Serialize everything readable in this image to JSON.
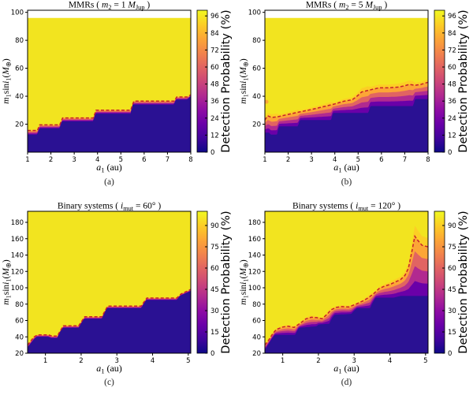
{
  "colors": {
    "background": "#ffffff",
    "yellow": "#f2e41f",
    "dark": "#2a1193",
    "dashed_line": "#c5202a",
    "band": [
      "#6a00a8",
      "#b12a90",
      "#e16462",
      "#fca636",
      "#fcce25"
    ],
    "plasma": [
      "#0d0887",
      "#41049d",
      "#6a00a8",
      "#8f0da4",
      "#b12a90",
      "#cc4778",
      "#e16462",
      "#f2844b",
      "#fca636",
      "#fcce25",
      "#f0f921"
    ],
    "axis": "#000000"
  },
  "chart_data": [
    {
      "id": "a",
      "type": "heatmap",
      "caption": "(a)",
      "title_segments": [
        {
          "t": "MMRs ( "
        },
        {
          "t": "m",
          "s": "i"
        },
        {
          "t": "2",
          "s": "sub"
        },
        {
          "t": " = 1 "
        },
        {
          "t": "M",
          "s": "i"
        },
        {
          "t": "Jup",
          "s": "sub"
        },
        {
          "t": " )"
        }
      ],
      "xlabel_segments": [
        {
          "t": "a",
          "s": "i"
        },
        {
          "t": "1",
          "s": "sub"
        },
        {
          "t": " (au)"
        }
      ],
      "ylabel_segments": [
        {
          "t": "m",
          "s": "i"
        },
        {
          "t": "1",
          "s": "sub"
        },
        {
          "t": "sin"
        },
        {
          "t": "i",
          "s": "i"
        },
        {
          "t": "1",
          "s": "sub"
        },
        {
          "t": "("
        },
        {
          "t": "M",
          "s": "i"
        },
        {
          "t": "⊕",
          "s": "sub"
        },
        {
          "t": ")"
        }
      ],
      "x_range": [
        1,
        8
      ],
      "y_range": [
        0,
        101.5
      ],
      "x_ticks": [
        1,
        2,
        3,
        4,
        5,
        6,
        7,
        8
      ],
      "y_ticks": [
        20,
        40,
        60,
        80,
        100
      ],
      "data_top": 96,
      "boundary_dark": [
        [
          1,
          12.5
        ],
        [
          1.42,
          12.5
        ],
        [
          1.5,
          17
        ],
        [
          2.38,
          17
        ],
        [
          2.46,
          22
        ],
        [
          3.82,
          22
        ],
        [
          3.9,
          27.5
        ],
        [
          5.42,
          27.5
        ],
        [
          5.5,
          34
        ],
        [
          7.28,
          34
        ],
        [
          7.36,
          37.5
        ],
        [
          7.85,
          37.5
        ],
        [
          8,
          40
        ]
      ],
      "boundary_dashed": [
        [
          1,
          15.5
        ],
        [
          1.42,
          15.5
        ],
        [
          1.52,
          19.5
        ],
        [
          2.38,
          19.5
        ],
        [
          2.5,
          24.5
        ],
        [
          3.82,
          24.5
        ],
        [
          3.94,
          30
        ],
        [
          5.42,
          30
        ],
        [
          5.56,
          36.5
        ],
        [
          7.28,
          36.5
        ],
        [
          7.4,
          39.5
        ],
        [
          7.85,
          39.5
        ],
        [
          8,
          41
        ]
      ],
      "colorbar": {
        "range": [
          0,
          100
        ],
        "ticks": [
          0,
          12,
          24,
          36,
          48,
          60,
          72,
          84,
          96
        ],
        "label": "Detection Probability (%)"
      }
    },
    {
      "id": "b",
      "type": "heatmap",
      "caption": "(b)",
      "title_segments": [
        {
          "t": "MMRs ( "
        },
        {
          "t": "m",
          "s": "i"
        },
        {
          "t": "2",
          "s": "sub"
        },
        {
          "t": " = 5 "
        },
        {
          "t": "M",
          "s": "i"
        },
        {
          "t": "Jup",
          "s": "sub"
        },
        {
          "t": " )"
        }
      ],
      "xlabel_segments": [
        {
          "t": "a",
          "s": "i"
        },
        {
          "t": "1",
          "s": "sub"
        },
        {
          "t": " (au)"
        }
      ],
      "ylabel_segments": [
        {
          "t": "m",
          "s": "i"
        },
        {
          "t": "1",
          "s": "sub"
        },
        {
          "t": "sin"
        },
        {
          "t": "i",
          "s": "i"
        },
        {
          "t": "1",
          "s": "sub"
        },
        {
          "t": "("
        },
        {
          "t": "M",
          "s": "i"
        },
        {
          "t": "⊕",
          "s": "sub"
        },
        {
          "t": ")"
        }
      ],
      "x_range": [
        1,
        8
      ],
      "y_range": [
        0,
        101.5
      ],
      "x_ticks": [
        1,
        2,
        3,
        4,
        5,
        6,
        7,
        8
      ],
      "y_ticks": [
        20,
        40,
        60,
        80,
        100
      ],
      "data_top": 96,
      "boundary_dark": [
        [
          1,
          14
        ],
        [
          1.18,
          14
        ],
        [
          1.25,
          12.5
        ],
        [
          1.52,
          12.5
        ],
        [
          1.6,
          18.5
        ],
        [
          2.42,
          18.5
        ],
        [
          2.5,
          23
        ],
        [
          3.84,
          23
        ],
        [
          3.92,
          28
        ],
        [
          5.44,
          28
        ],
        [
          5.52,
          33
        ],
        [
          7.36,
          33
        ],
        [
          7.44,
          38
        ],
        [
          8,
          38
        ]
      ],
      "boundary_dashed": [
        [
          1,
          23
        ],
        [
          1.12,
          26
        ],
        [
          1.3,
          24.8
        ],
        [
          1.6,
          25.5
        ],
        [
          2,
          27
        ],
        [
          2.5,
          28.8
        ],
        [
          3,
          30.5
        ],
        [
          3.5,
          32.5
        ],
        [
          4,
          34.5
        ],
        [
          4.4,
          36.5
        ],
        [
          4.75,
          37.5
        ],
        [
          4.95,
          40
        ],
        [
          5.15,
          43
        ],
        [
          5.5,
          44.5
        ],
        [
          5.9,
          46
        ],
        [
          6.3,
          46
        ],
        [
          6.7,
          46.5
        ],
        [
          7,
          47.5
        ],
        [
          7.2,
          48.5
        ],
        [
          7.45,
          47.8
        ],
        [
          7.7,
          48.5
        ],
        [
          8,
          50
        ]
      ],
      "spots": [
        {
          "x": 1.07,
          "y": 36,
          "r": 2.5,
          "color": "#fca636"
        }
      ],
      "colorbar": {
        "range": [
          0,
          100
        ],
        "ticks": [
          0,
          12,
          24,
          36,
          48,
          60,
          72,
          84,
          96
        ],
        "label": "Detection Probability (%)"
      }
    },
    {
      "id": "c",
      "type": "heatmap",
      "caption": "(c)",
      "title_segments": [
        {
          "t": "Binary systems ( "
        },
        {
          "t": "i",
          "s": "i"
        },
        {
          "t": "mut",
          "s": "sub"
        },
        {
          "t": " = 60° )"
        }
      ],
      "xlabel_segments": [
        {
          "t": "a",
          "s": "i"
        },
        {
          "t": "1",
          "s": "sub"
        },
        {
          "t": " (au)"
        }
      ],
      "ylabel_segments": [
        {
          "t": "m",
          "s": "i"
        },
        {
          "t": "1",
          "s": "sub"
        },
        {
          "t": "sin"
        },
        {
          "t": "i",
          "s": "i"
        },
        {
          "t": "1",
          "s": "sub"
        },
        {
          "t": "("
        },
        {
          "t": "M",
          "s": "i"
        },
        {
          "t": "⊕",
          "s": "sub"
        },
        {
          "t": ")"
        }
      ],
      "x_range": [
        0.5,
        5.07
      ],
      "y_range": [
        20,
        193.5
      ],
      "x_ticks": [
        1,
        2,
        3,
        4,
        5
      ],
      "y_ticks": [
        20,
        40,
        60,
        80,
        100,
        120,
        140,
        160,
        180
      ],
      "data_top": null,
      "boundary_dark": [
        [
          0.5,
          27
        ],
        [
          0.68,
          37
        ],
        [
          0.75,
          40
        ],
        [
          1.08,
          40
        ],
        [
          1.15,
          38.5
        ],
        [
          1.33,
          38.5
        ],
        [
          1.42,
          47
        ],
        [
          1.48,
          51
        ],
        [
          1.93,
          51
        ],
        [
          2.02,
          58
        ],
        [
          2.08,
          62
        ],
        [
          2.58,
          62
        ],
        [
          2.66,
          70
        ],
        [
          2.72,
          75
        ],
        [
          3.68,
          75
        ],
        [
          3.76,
          81
        ],
        [
          3.82,
          85
        ],
        [
          4.68,
          85
        ],
        [
          4.76,
          90
        ],
        [
          5.07,
          96
        ]
      ],
      "boundary_dashed": [
        [
          0.5,
          30
        ],
        [
          0.68,
          40
        ],
        [
          0.78,
          42.5
        ],
        [
          1.08,
          42.5
        ],
        [
          1.18,
          41
        ],
        [
          1.33,
          41
        ],
        [
          1.5,
          53.5
        ],
        [
          1.93,
          53.5
        ],
        [
          2.1,
          64.5
        ],
        [
          2.58,
          64.5
        ],
        [
          2.74,
          77.5
        ],
        [
          3.68,
          77.5
        ],
        [
          3.84,
          87.5
        ],
        [
          4.68,
          87.5
        ],
        [
          4.8,
          92.5
        ],
        [
          5.07,
          98
        ]
      ],
      "colorbar": {
        "range": [
          0,
          100
        ],
        "ticks": [
          0,
          15,
          30,
          45,
          60,
          75,
          90
        ],
        "label": "Detection Probability (%)"
      }
    },
    {
      "id": "d",
      "type": "heatmap",
      "caption": "(d)",
      "title_segments": [
        {
          "t": "Binary systems ( "
        },
        {
          "t": "i",
          "s": "i"
        },
        {
          "t": "mut",
          "s": "sub"
        },
        {
          "t": " = 120° )"
        }
      ],
      "xlabel_segments": [
        {
          "t": "a",
          "s": "i"
        },
        {
          "t": "1",
          "s": "sub"
        },
        {
          "t": " (au)"
        }
      ],
      "ylabel_segments": [
        {
          "t": "m",
          "s": "i"
        },
        {
          "t": "1",
          "s": "sub"
        },
        {
          "t": "sin"
        },
        {
          "t": "i",
          "s": "i"
        },
        {
          "t": "1",
          "s": "sub"
        },
        {
          "t": "("
        },
        {
          "t": "M",
          "s": "i"
        },
        {
          "t": "⊕",
          "s": "sub"
        },
        {
          "t": ")"
        }
      ],
      "x_range": [
        0.5,
        5.07
      ],
      "y_range": [
        20,
        193.5
      ],
      "x_ticks": [
        1,
        2,
        3,
        4,
        5
      ],
      "y_ticks": [
        20,
        40,
        60,
        80,
        100,
        120,
        140,
        160,
        180
      ],
      "data_top": null,
      "boundary_dark": [
        [
          0.5,
          24
        ],
        [
          0.7,
          38
        ],
        [
          0.78,
          42.5
        ],
        [
          1.35,
          42.5
        ],
        [
          1.45,
          51
        ],
        [
          1.95,
          53
        ],
        [
          2.0,
          55
        ],
        [
          2.3,
          56
        ],
        [
          2.38,
          63
        ],
        [
          2.45,
          67
        ],
        [
          2.92,
          68
        ],
        [
          3.0,
          72
        ],
        [
          3.08,
          75
        ],
        [
          3.44,
          75
        ],
        [
          3.52,
          82
        ],
        [
          3.6,
          88
        ],
        [
          4.1,
          88
        ],
        [
          4.3,
          90
        ],
        [
          5.07,
          90
        ]
      ],
      "boundary_dashed": [
        [
          0.5,
          30
        ],
        [
          0.62,
          37
        ],
        [
          0.72,
          44
        ],
        [
          0.82,
          49
        ],
        [
          1.0,
          52
        ],
        [
          1.15,
          53
        ],
        [
          1.32,
          51.5
        ],
        [
          1.5,
          57
        ],
        [
          1.65,
          62
        ],
        [
          1.8,
          64
        ],
        [
          1.95,
          63.5
        ],
        [
          2.1,
          62
        ],
        [
          2.25,
          68
        ],
        [
          2.35,
          73
        ],
        [
          2.5,
          76
        ],
        [
          2.65,
          77
        ],
        [
          2.85,
          76.5
        ],
        [
          3.05,
          80
        ],
        [
          3.25,
          84
        ],
        [
          3.4,
          88
        ],
        [
          3.55,
          93
        ],
        [
          3.7,
          99
        ],
        [
          3.85,
          102
        ],
        [
          4.0,
          104
        ],
        [
          4.15,
          107
        ],
        [
          4.3,
          110
        ],
        [
          4.42,
          115
        ],
        [
          4.52,
          124
        ],
        [
          4.62,
          145
        ],
        [
          4.7,
          163
        ],
        [
          4.78,
          158
        ],
        [
          4.9,
          152
        ],
        [
          5.07,
          150
        ]
      ],
      "colorbar": {
        "range": [
          0,
          100
        ],
        "ticks": [
          0,
          15,
          30,
          45,
          60,
          75,
          90
        ],
        "label": "Detection Probability (%)"
      }
    }
  ]
}
